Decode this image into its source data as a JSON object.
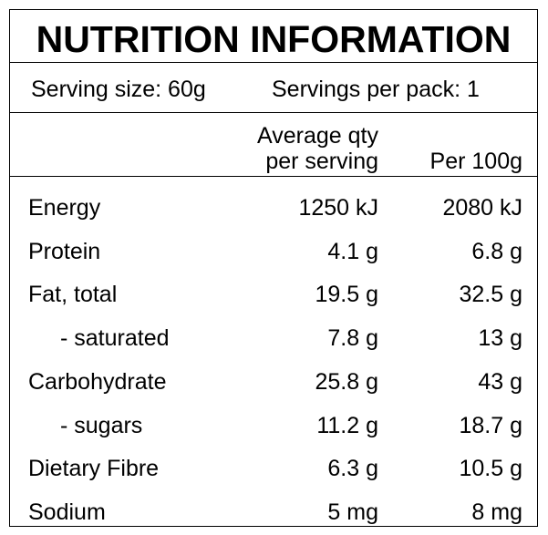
{
  "title": "NUTRITION INFORMATION",
  "serving_size": "Serving size: 60g",
  "servings_per_pack": "Servings per pack: 1",
  "columns": {
    "per_serving_line1": "Average qty",
    "per_serving_line2": "per serving",
    "per_100g": "Per 100g"
  },
  "rows": [
    {
      "label": "Energy",
      "per_serving": "1250 kJ",
      "per_100g": "2080 kJ",
      "sub": false
    },
    {
      "label": "Protein",
      "per_serving": "4.1 g",
      "per_100g": "6.8 g",
      "sub": false
    },
    {
      "label": "Fat, total",
      "per_serving": "19.5 g",
      "per_100g": "32.5 g",
      "sub": false
    },
    {
      "label": "- saturated",
      "per_serving": "7.8 g",
      "per_100g": "13 g",
      "sub": true
    },
    {
      "label": "Carbohydrate",
      "per_serving": "25.8 g",
      "per_100g": "43 g",
      "sub": false
    },
    {
      "label": "- sugars",
      "per_serving": "11.2 g",
      "per_100g": "18.7 g",
      "sub": true
    },
    {
      "label": "Dietary Fibre",
      "per_serving": "6.3 g",
      "per_100g": "10.5 g",
      "sub": false
    },
    {
      "label": "Sodium",
      "per_serving": "5 mg",
      "per_100g": "8 mg",
      "sub": false
    }
  ]
}
